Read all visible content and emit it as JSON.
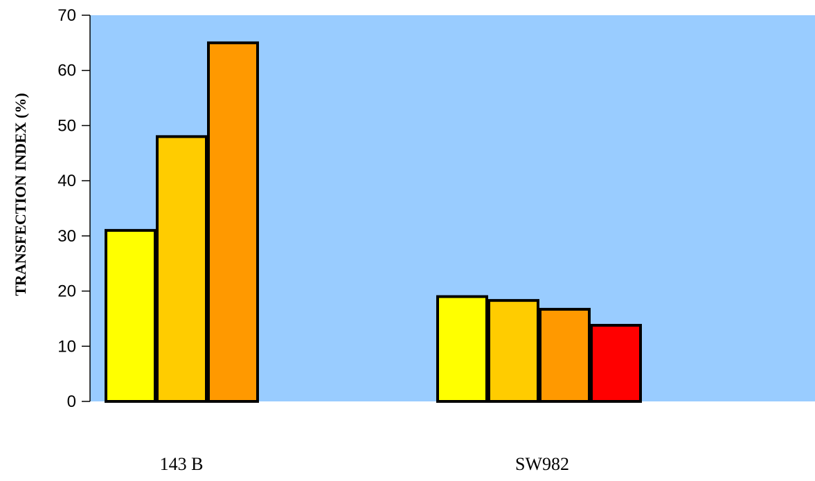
{
  "chart_data": {
    "type": "bar",
    "categories": [
      "143 B",
      "SW982"
    ],
    "series": [
      {
        "values": [
          31,
          19
        ],
        "color": "#ffff00"
      },
      {
        "values": [
          48,
          18.3
        ],
        "color": "#ffcc00"
      },
      {
        "values": [
          65,
          16.7
        ],
        "color": "#ff9900"
      },
      {
        "values": [
          null,
          13.8
        ],
        "color": "#ff0000"
      }
    ],
    "title": "",
    "xlabel": "",
    "ylabel": "TRANSFECTION INDEX (%)",
    "ylim": [
      0,
      70
    ],
    "yticks": [
      0,
      10,
      20,
      30,
      40,
      50,
      60,
      70
    ],
    "yticks_text": [
      "0",
      "10",
      "20",
      "30",
      "40",
      "50",
      "60",
      "70"
    ],
    "plot_background": "#99ccff",
    "bar_outline": "#000000",
    "grid": false,
    "legend": "none"
  }
}
